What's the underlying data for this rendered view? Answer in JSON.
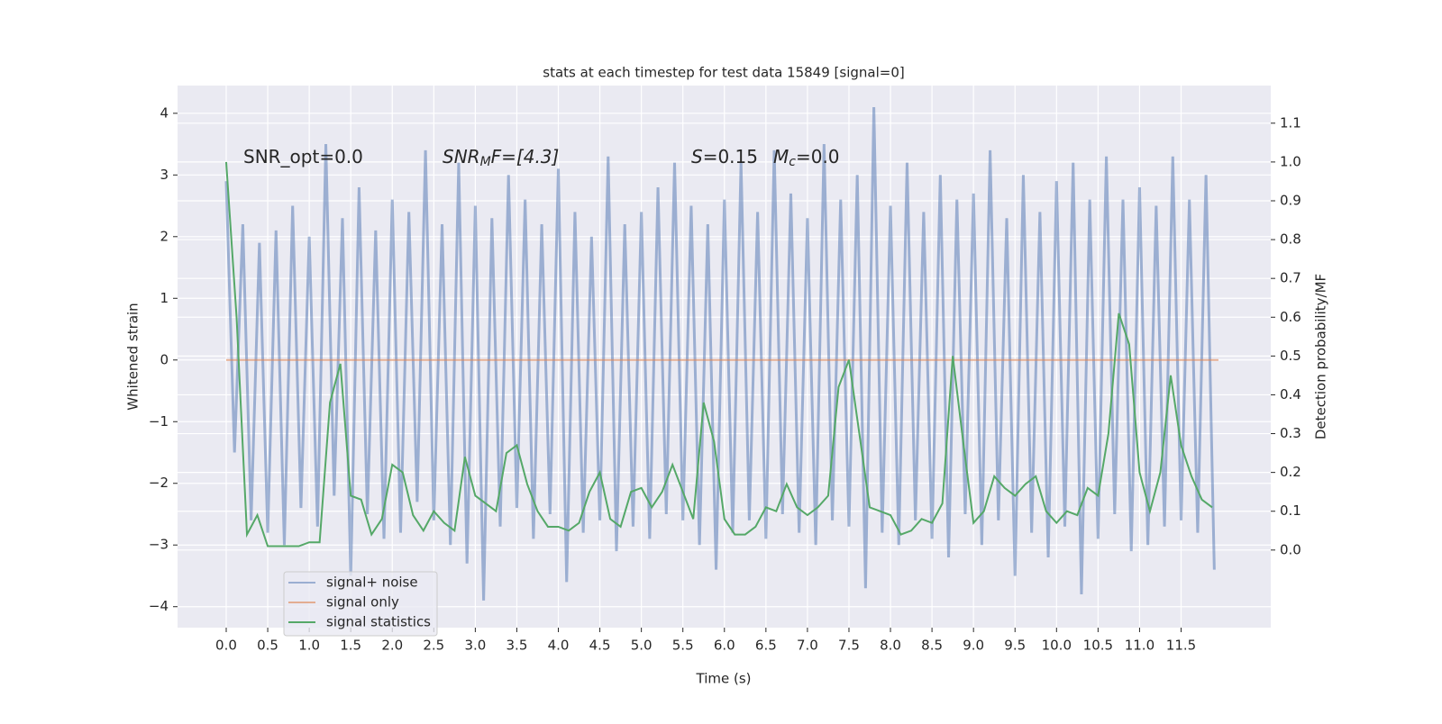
{
  "chart_data": {
    "type": "line",
    "title": "stats at each timestep for test data 15849 [signal=0]",
    "xlabel": "Time (s)",
    "ylabel": "Whitened strain",
    "y2label": "Detection probability/MF",
    "annotations": [
      [
        "SNR_opt=0.0"
      ],
      [
        "SNR",
        "M",
        "F=[4.3]"
      ],
      [
        "S",
        "=0.15"
      ],
      [
        "M",
        "c",
        "=0.0"
      ]
    ],
    "xlim": [
      -0.586,
      12.58
    ],
    "ylim": [
      -4.34,
      4.45
    ],
    "y2lim": [
      -0.2,
      1.197
    ],
    "grid": true,
    "legend": "lower left",
    "xticks": [
      {
        "value": 0,
        "label": "0.0"
      },
      0.5,
      {
        "value": 1,
        "label": "1.0"
      },
      1.5,
      {
        "value": 2,
        "label": "2.0"
      },
      2.5,
      {
        "value": 3,
        "label": "3.0"
      },
      3.5,
      {
        "value": 4,
        "label": "4.0"
      },
      4.5,
      {
        "value": 5,
        "label": "5.0"
      },
      5.5,
      {
        "value": 6,
        "label": "6.0"
      },
      6.5,
      {
        "value": 7,
        "label": "7.0"
      },
      7.5,
      {
        "value": 8,
        "label": "8.0"
      },
      8.5,
      {
        "value": 9,
        "label": "9.0"
      },
      9.5,
      {
        "value": 10,
        "label": "10.0"
      },
      10.5,
      {
        "value": 11,
        "label": "11.0"
      },
      11.5
    ],
    "yticks": [
      {
        "value": -4,
        "label": "−4"
      },
      {
        "value": -3,
        "label": "−3"
      },
      {
        "value": -2,
        "label": "−2"
      },
      {
        "value": -1,
        "label": "−1"
      },
      0,
      1,
      2,
      3,
      4
    ],
    "y2ticks": [
      {
        "value": 0,
        "label": "0.0"
      },
      0.1,
      0.2,
      0.3,
      0.4,
      0.5,
      0.6,
      0.7,
      0.8,
      0.9,
      {
        "value": 1,
        "label": "1.0"
      },
      1.1
    ],
    "series": [
      {
        "name": "signal+ noise",
        "color": "#4c72b0",
        "axis": "y",
        "x": [
          0,
          0.1,
          0.2,
          0.3,
          0.4,
          0.5,
          0.6,
          0.7,
          0.8,
          0.9,
          1,
          1.1,
          1.2,
          1.3,
          1.4,
          1.5,
          1.6,
          1.7,
          1.8,
          1.9,
          2,
          2.1,
          2.2,
          2.3,
          2.4,
          2.5,
          2.6,
          2.7,
          2.8,
          2.9,
          3,
          3.1,
          3.2,
          3.3,
          3.4,
          3.5,
          3.6,
          3.7,
          3.8,
          3.9,
          4,
          4.1,
          4.2,
          4.3,
          4.4,
          4.5,
          4.6,
          4.7,
          4.8,
          4.9,
          5,
          5.1,
          5.2,
          5.3,
          5.4,
          5.5,
          5.6,
          5.7,
          5.8,
          5.9,
          6,
          6.1,
          6.2,
          6.3,
          6.4,
          6.5,
          6.6,
          6.7,
          6.8,
          6.9,
          7,
          7.1,
          7.2,
          7.3,
          7.4,
          7.5,
          7.6,
          7.7,
          7.8,
          7.9,
          8,
          8.1,
          8.2,
          8.3,
          8.4,
          8.5,
          8.6,
          8.7,
          8.8,
          8.9,
          9,
          9.1,
          9.2,
          9.3,
          9.4,
          9.5,
          9.6,
          9.7,
          9.8,
          9.9,
          10,
          10.1,
          10.2,
          10.3,
          10.4,
          10.5,
          10.6,
          10.7,
          10.8,
          10.9,
          11,
          11.1,
          11.2,
          11.3,
          11.4,
          11.5,
          11.6,
          11.7,
          11.8,
          11.9
        ],
        "values": [
          2.9,
          -1.5,
          2.2,
          -2.6,
          1.9,
          -2.8,
          2.1,
          -3.0,
          2.5,
          -2.4,
          2.0,
          -2.7,
          3.5,
          -2.2,
          2.3,
          -3.5,
          2.8,
          -2.5,
          2.1,
          -2.9,
          2.6,
          -2.8,
          2.4,
          -2.3,
          3.4,
          -2.6,
          2.2,
          -3.0,
          3.2,
          -3.3,
          2.5,
          -3.9,
          2.3,
          -2.7,
          3.0,
          -2.4,
          2.6,
          -2.9,
          2.2,
          -2.5,
          3.1,
          -3.6,
          2.4,
          -2.8,
          2.0,
          -2.6,
          3.3,
          -3.1,
          2.2,
          -2.7,
          2.4,
          -2.9,
          2.8,
          -2.5,
          3.2,
          -2.6,
          2.5,
          -3.0,
          2.2,
          -3.4,
          2.6,
          -2.8,
          3.2,
          -2.6,
          2.4,
          -2.9,
          3.4,
          -2.5,
          2.7,
          -2.8,
          2.3,
          -3.0,
          3.5,
          -2.6,
          2.6,
          -2.7,
          3.0,
          -3.7,
          4.1,
          -2.8,
          2.5,
          -3.0,
          3.2,
          -2.6,
          2.4,
          -2.9,
          3.0,
          -3.2,
          2.6,
          -2.5,
          2.7,
          -3.0,
          3.4,
          -2.6,
          2.3,
          -3.5,
          3.0,
          -2.8,
          2.4,
          -3.2,
          2.9,
          -2.7,
          3.2,
          -3.8,
          2.6,
          -2.9,
          3.3,
          -2.5,
          2.6,
          -3.1,
          2.8,
          -3.0,
          2.5,
          -2.7,
          3.3,
          -2.6,
          2.6,
          -2.8,
          3.0,
          -3.4
        ]
      },
      {
        "name": "signal only",
        "color": "#dd8452",
        "axis": "y",
        "x": [
          0,
          11.95
        ],
        "values": [
          0,
          0
        ]
      },
      {
        "name": "signal statistics",
        "color": "#55a868",
        "axis": "y2",
        "x": [
          0,
          0.125,
          0.25,
          0.375,
          0.5,
          0.625,
          0.75,
          0.875,
          1,
          1.125,
          1.25,
          1.375,
          1.5,
          1.625,
          1.75,
          1.875,
          2,
          2.125,
          2.25,
          2.375,
          2.5,
          2.625,
          2.75,
          2.875,
          3,
          3.125,
          3.25,
          3.375,
          3.5,
          3.625,
          3.75,
          3.875,
          4,
          4.125,
          4.25,
          4.375,
          4.5,
          4.625,
          4.75,
          4.875,
          5,
          5.125,
          5.25,
          5.375,
          5.5,
          5.625,
          5.75,
          5.875,
          6,
          6.125,
          6.25,
          6.375,
          6.5,
          6.625,
          6.75,
          6.875,
          7,
          7.125,
          7.25,
          7.375,
          7.5,
          7.625,
          7.75,
          7.875,
          8,
          8.125,
          8.25,
          8.375,
          8.5,
          8.625,
          8.75,
          8.875,
          9,
          9.125,
          9.25,
          9.375,
          9.5,
          9.625,
          9.75,
          9.875,
          10,
          10.125,
          10.25,
          10.375,
          10.5,
          10.625,
          10.75,
          10.875,
          11,
          11.125,
          11.25,
          11.375,
          11.5,
          11.625,
          11.75,
          11.875
        ],
        "values": [
          1.0,
          0.6,
          0.04,
          0.09,
          0.01,
          0.01,
          0.01,
          0.01,
          0.02,
          0.02,
          0.38,
          0.48,
          0.14,
          0.13,
          0.04,
          0.08,
          0.22,
          0.2,
          0.09,
          0.05,
          0.1,
          0.07,
          0.05,
          0.24,
          0.14,
          0.12,
          0.1,
          0.25,
          0.27,
          0.17,
          0.1,
          0.06,
          0.06,
          0.05,
          0.07,
          0.15,
          0.2,
          0.08,
          0.06,
          0.15,
          0.16,
          0.11,
          0.15,
          0.22,
          0.15,
          0.08,
          0.38,
          0.28,
          0.08,
          0.04,
          0.04,
          0.06,
          0.11,
          0.1,
          0.17,
          0.11,
          0.09,
          0.11,
          0.14,
          0.42,
          0.49,
          0.3,
          0.11,
          0.1,
          0.09,
          0.04,
          0.05,
          0.08,
          0.07,
          0.12,
          0.5,
          0.28,
          0.07,
          0.1,
          0.19,
          0.16,
          0.14,
          0.17,
          0.19,
          0.1,
          0.07,
          0.1,
          0.09,
          0.16,
          0.14,
          0.3,
          0.61,
          0.53,
          0.2,
          0.1,
          0.2,
          0.45,
          0.27,
          0.19,
          0.13,
          0.11
        ]
      }
    ]
  }
}
